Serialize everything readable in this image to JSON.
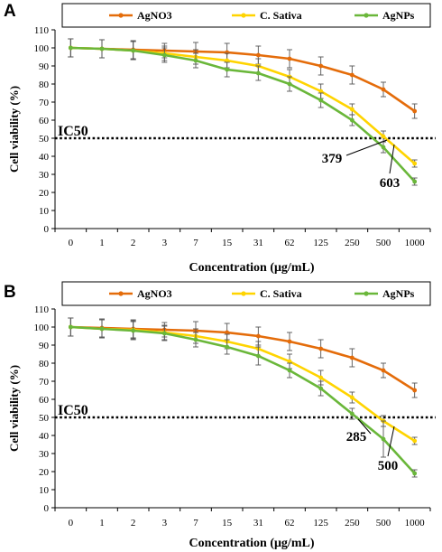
{
  "chart_data": [
    {
      "type": "line",
      "panel_label": "A",
      "xlabel": "Concentration (μg/mL)",
      "ylabel": "Cell viability (%)",
      "categories": [
        "0",
        "1",
        "2",
        "3",
        "7",
        "15",
        "31",
        "62",
        "125",
        "250",
        "500",
        "1000"
      ],
      "ylim": [
        0,
        110
      ],
      "yticks": [
        0,
        10,
        20,
        30,
        40,
        50,
        60,
        70,
        80,
        90,
        100,
        110
      ],
      "legend_position": "top",
      "grid": false,
      "series": [
        {
          "name": "AgNO3",
          "color": "#e46c0a",
          "values": [
            100,
            99.5,
            99,
            98.5,
            98,
            97.5,
            96,
            94,
            90,
            85,
            77,
            65
          ],
          "errors": [
            5,
            5,
            5,
            4,
            5,
            5,
            5,
            5,
            5,
            5,
            4,
            4
          ]
        },
        {
          "name": "C. Sativa",
          "color": "#ffd400",
          "values": [
            100,
            99.5,
            98.5,
            97,
            95,
            93,
            90,
            84,
            76,
            66,
            51,
            36
          ],
          "errors": [
            5,
            5,
            5,
            4,
            4,
            4,
            4,
            4,
            4,
            3,
            3,
            2
          ]
        },
        {
          "name": "AgNPs",
          "color": "#6ab73a",
          "values": [
            100,
            99.5,
            98.5,
            96,
            93,
            88,
            86,
            80,
            71,
            60,
            45,
            26
          ],
          "errors": [
            5,
            5,
            5,
            4,
            4,
            4,
            4,
            4,
            4,
            3,
            3,
            2
          ]
        }
      ],
      "reference_line": {
        "label": "IC50",
        "y": 50
      },
      "annotations": [
        {
          "text": "379",
          "category": "250"
        },
        {
          "text": "603",
          "category": "500"
        }
      ]
    },
    {
      "type": "line",
      "panel_label": "B",
      "xlabel": "Concentration (μg/mL)",
      "ylabel": "Cell viability (%)",
      "categories": [
        "0",
        "1",
        "2",
        "3",
        "7",
        "15",
        "31",
        "62",
        "125",
        "250",
        "500",
        "1000"
      ],
      "ylim": [
        0,
        110
      ],
      "yticks": [
        0,
        10,
        20,
        30,
        40,
        50,
        60,
        70,
        80,
        90,
        100,
        110
      ],
      "legend_position": "top",
      "grid": false,
      "series": [
        {
          "name": "AgNO3",
          "color": "#e46c0a",
          "values": [
            100,
            99.5,
            99,
            98.5,
            98,
            97,
            95,
            92,
            88,
            83,
            76,
            65
          ],
          "errors": [
            5,
            5,
            5,
            4,
            5,
            5,
            5,
            5,
            5,
            5,
            4,
            4
          ]
        },
        {
          "name": "C. Sativa",
          "color": "#ffd400",
          "values": [
            100,
            99,
            98.5,
            97,
            95,
            92,
            88,
            81,
            72,
            61,
            48,
            37
          ],
          "errors": [
            5,
            5,
            5,
            4,
            4,
            4,
            4,
            4,
            4,
            3,
            3,
            2
          ]
        },
        {
          "name": "AgNPs",
          "color": "#6ab73a",
          "values": [
            100,
            99,
            98,
            96.5,
            93,
            89,
            84,
            76,
            66,
            52,
            38,
            19
          ],
          "errors": [
            5,
            5,
            5,
            4,
            4,
            4,
            5,
            4,
            4,
            3,
            10,
            2
          ]
        }
      ],
      "reference_line": {
        "label": "IC50",
        "y": 50
      },
      "annotations": [
        {
          "text": "285",
          "category": "250"
        },
        {
          "text": "500",
          "category": "500"
        }
      ]
    }
  ]
}
